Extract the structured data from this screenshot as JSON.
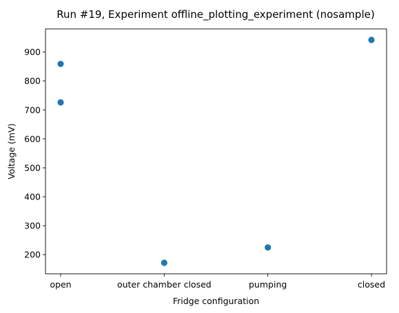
{
  "chart_data": {
    "type": "scatter",
    "title": "Run #19, Experiment offline_plotting_experiment (nosample)",
    "xlabel": "Fridge configuration",
    "ylabel": "Voltage (mV)",
    "categories": [
      "open",
      "outer chamber closed",
      "pumping",
      "closed"
    ],
    "x": [
      "open",
      "open",
      "outer chamber closed",
      "pumping",
      "closed"
    ],
    "y": [
      859,
      726,
      172,
      225,
      942
    ],
    "yticks": [
      200,
      300,
      400,
      500,
      600,
      700,
      800,
      900
    ],
    "ylim": [
      134,
      980
    ],
    "grid": false,
    "marker_color": "#1f77b4"
  }
}
